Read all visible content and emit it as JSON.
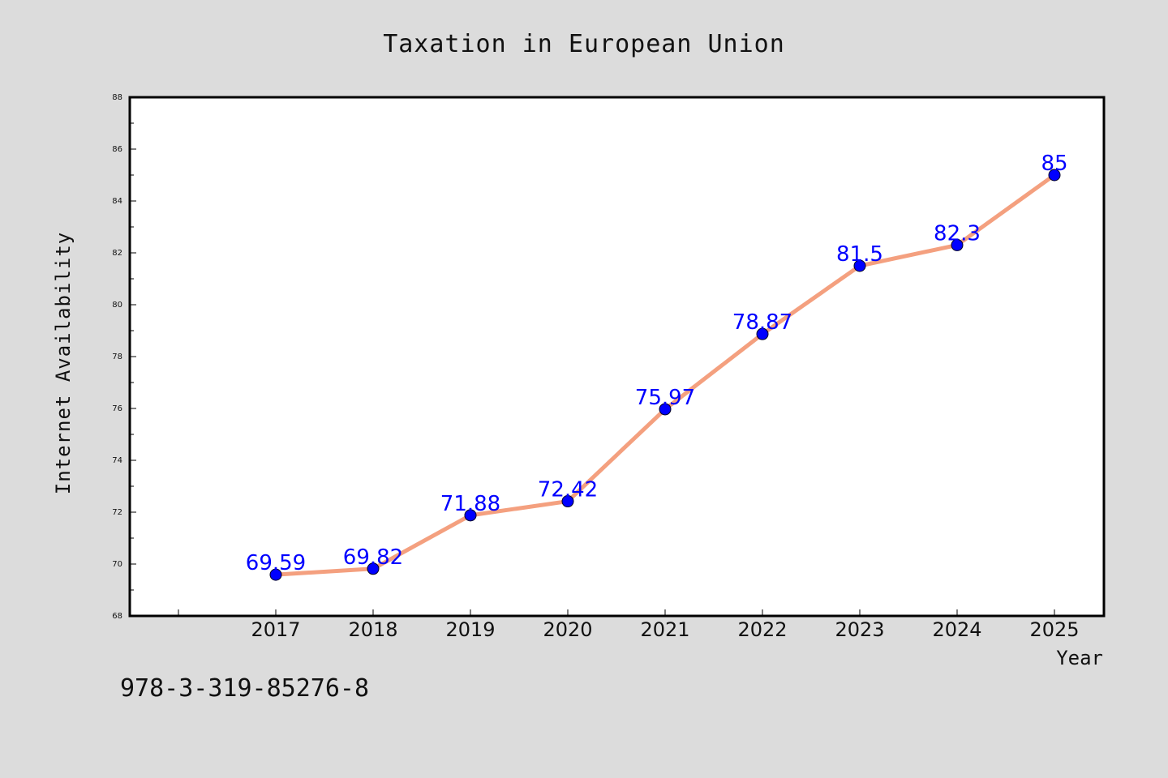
{
  "chart_data": {
    "type": "line",
    "title": "Taxation in European Union",
    "xlabel": "Year",
    "ylabel": "Internet Availability",
    "categories": [
      "2017",
      "2018",
      "2019",
      "2020",
      "2021",
      "2022",
      "2023",
      "2024",
      "2025"
    ],
    "series": [
      {
        "values": [
          69.59,
          69.82,
          71.88,
          72.42,
          75.97,
          78.87,
          81.5,
          82.3,
          85
        ],
        "labels": [
          "69.59",
          "69.82",
          "71.88",
          "72.42",
          "75.97",
          "78.87",
          "81.5",
          "82.3",
          "85"
        ],
        "line_color": "#f4a07f",
        "marker_color": "#0000ff"
      }
    ],
    "ylim": [
      68,
      88
    ],
    "yticks": [
      "68",
      "70",
      "72",
      "74",
      "76",
      "78",
      "80",
      "82",
      "84",
      "86",
      "88"
    ],
    "grid": false,
    "legend": "none"
  },
  "annotation": {
    "code": "978-3-319-85276-8"
  }
}
